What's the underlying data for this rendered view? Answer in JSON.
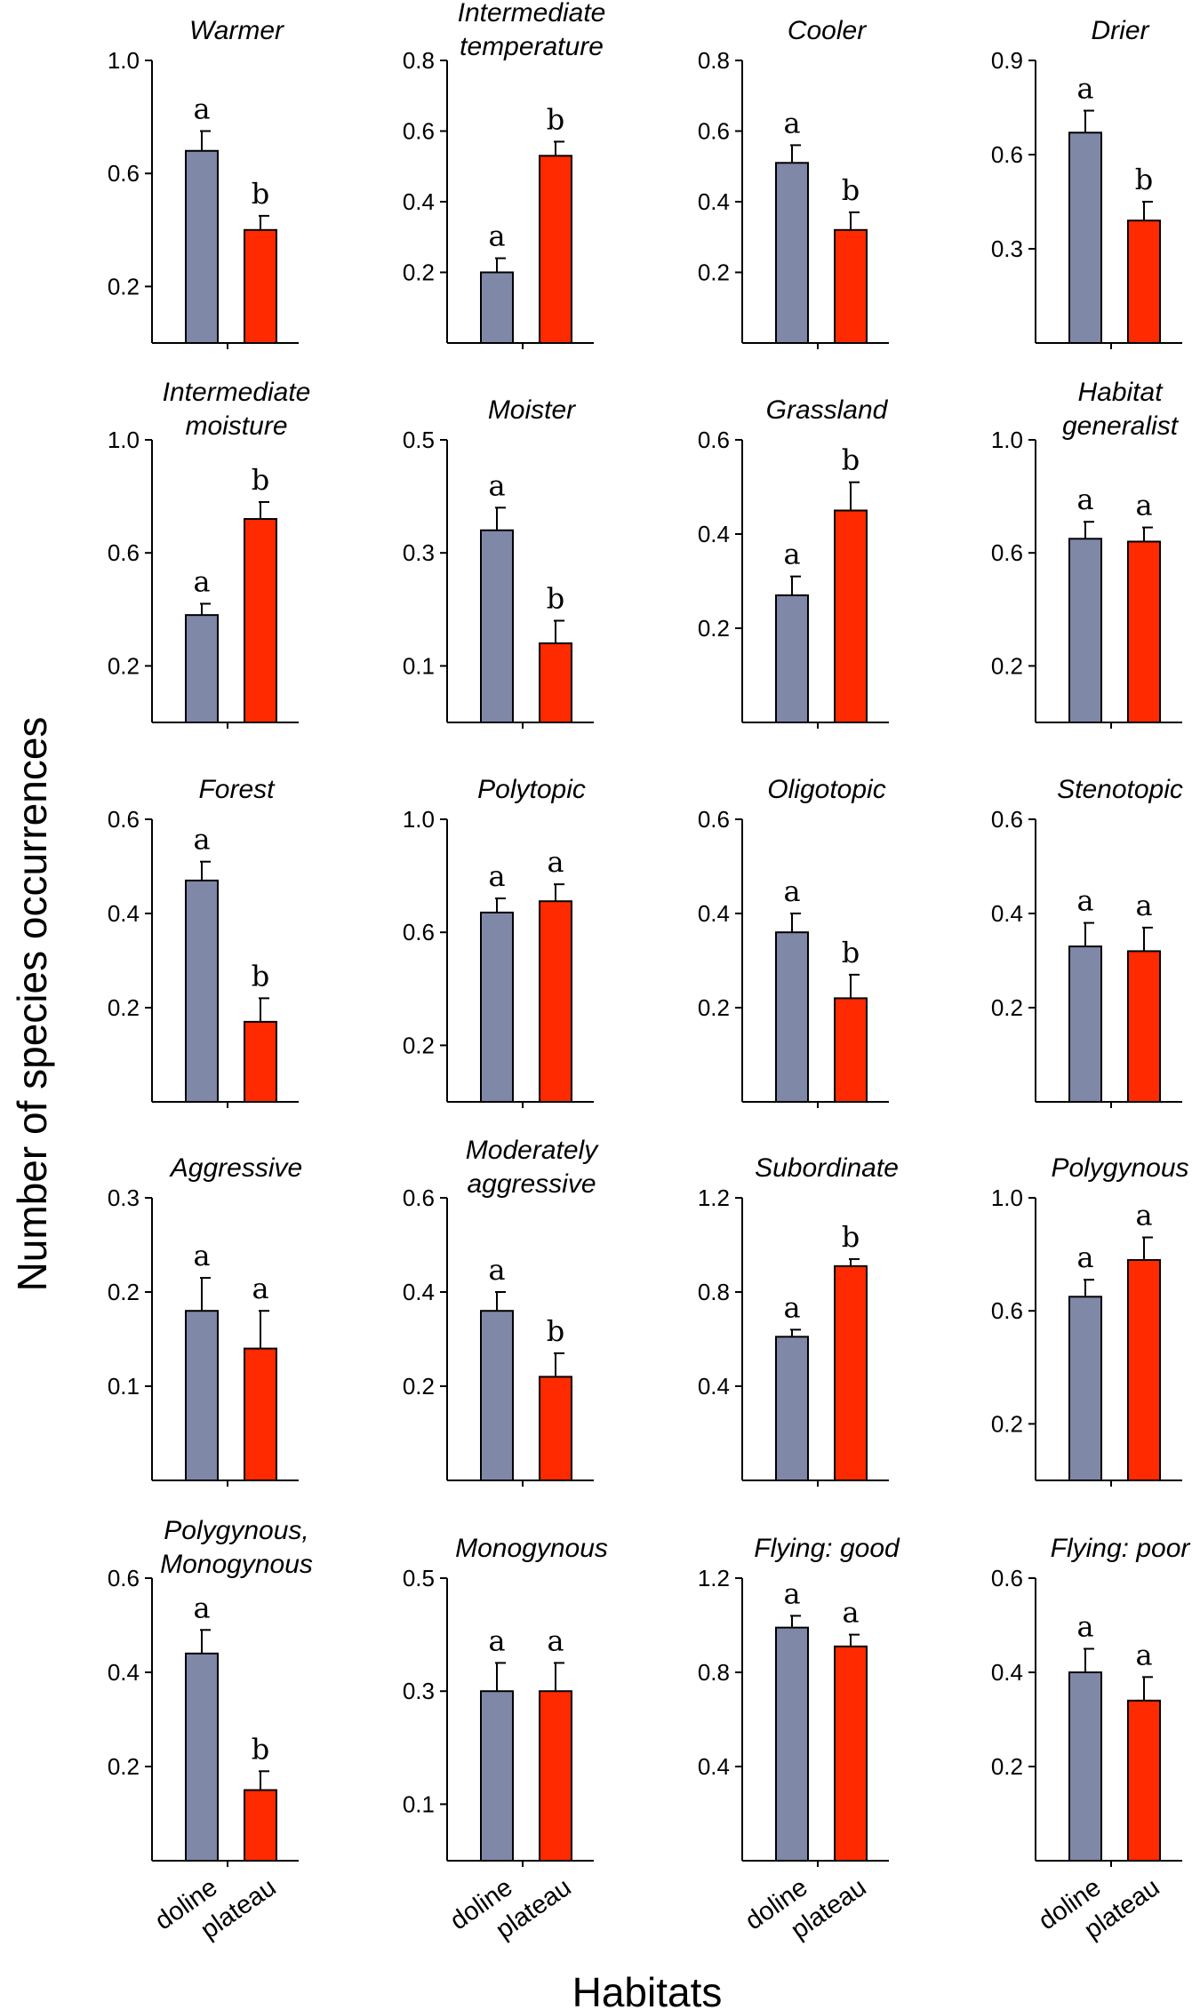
{
  "colors": {
    "doline": "#8088a8",
    "plateau": "#ff2a00"
  },
  "ylabel": "Number of species occurrences",
  "xlabel": "Habitats",
  "categories": [
    "doline",
    "plateau"
  ],
  "chart_data": [
    {
      "type": "bar",
      "title": [
        "Warmer"
      ],
      "categories": [
        "doline",
        "plateau"
      ],
      "values": [
        0.68,
        0.4
      ],
      "errors": [
        0.07,
        0.05
      ],
      "letters": [
        "a",
        "b"
      ],
      "ylim": [
        0,
        1.0
      ],
      "yticks": [
        0.2,
        0.6,
        1.0
      ],
      "ytick_labels": [
        "0.2",
        "0.6",
        "1.0"
      ]
    },
    {
      "type": "bar",
      "title": [
        "Intermediate",
        "temperature"
      ],
      "categories": [
        "doline",
        "plateau"
      ],
      "values": [
        0.2,
        0.53
      ],
      "errors": [
        0.04,
        0.04
      ],
      "letters": [
        "a",
        "b"
      ],
      "ylim": [
        0,
        0.8
      ],
      "yticks": [
        0.2,
        0.4,
        0.6,
        0.8
      ],
      "ytick_labels": [
        "0.2",
        "0.4",
        "0.6",
        "0.8"
      ]
    },
    {
      "type": "bar",
      "title": [
        "Cooler"
      ],
      "categories": [
        "doline",
        "plateau"
      ],
      "values": [
        0.51,
        0.32
      ],
      "errors": [
        0.05,
        0.05
      ],
      "letters": [
        "a",
        "b"
      ],
      "ylim": [
        0,
        0.8
      ],
      "yticks": [
        0.2,
        0.4,
        0.6,
        0.8
      ],
      "ytick_labels": [
        "0.2",
        "0.4",
        "0.6",
        "0.8"
      ]
    },
    {
      "type": "bar",
      "title": [
        "Drier"
      ],
      "categories": [
        "doline",
        "plateau"
      ],
      "values": [
        0.67,
        0.39
      ],
      "errors": [
        0.07,
        0.06
      ],
      "letters": [
        "a",
        "b"
      ],
      "ylim": [
        0,
        0.9
      ],
      "yticks": [
        0.3,
        0.6,
        0.9
      ],
      "ytick_labels": [
        "0.3",
        "0.6",
        "0.9"
      ]
    },
    {
      "type": "bar",
      "title": [
        "Intermediate",
        "moisture"
      ],
      "categories": [
        "doline",
        "plateau"
      ],
      "values": [
        0.38,
        0.72
      ],
      "errors": [
        0.04,
        0.06
      ],
      "letters": [
        "a",
        "b"
      ],
      "ylim": [
        0,
        1.0
      ],
      "yticks": [
        0.2,
        0.6,
        1.0
      ],
      "ytick_labels": [
        "0.2",
        "0.6",
        "1.0"
      ]
    },
    {
      "type": "bar",
      "title": [
        "Moister"
      ],
      "categories": [
        "doline",
        "plateau"
      ],
      "values": [
        0.34,
        0.14
      ],
      "errors": [
        0.04,
        0.04
      ],
      "letters": [
        "a",
        "b"
      ],
      "ylim": [
        0,
        0.5
      ],
      "yticks": [
        0.1,
        0.3,
        0.5
      ],
      "ytick_labels": [
        "0.1",
        "0.3",
        "0.5"
      ]
    },
    {
      "type": "bar",
      "title": [
        "Grassland"
      ],
      "categories": [
        "doline",
        "plateau"
      ],
      "values": [
        0.27,
        0.45
      ],
      "errors": [
        0.04,
        0.06
      ],
      "letters": [
        "a",
        "b"
      ],
      "ylim": [
        0,
        0.6
      ],
      "yticks": [
        0.2,
        0.4,
        0.6
      ],
      "ytick_labels": [
        "0.2",
        "0.4",
        "0.6"
      ]
    },
    {
      "type": "bar",
      "title": [
        "Habitat",
        "generalist"
      ],
      "categories": [
        "doline",
        "plateau"
      ],
      "values": [
        0.65,
        0.64
      ],
      "errors": [
        0.06,
        0.05
      ],
      "letters": [
        "a",
        "a"
      ],
      "ylim": [
        0,
        1.0
      ],
      "yticks": [
        0.2,
        0.6,
        1.0
      ],
      "ytick_labels": [
        "0.2",
        "0.6",
        "1.0"
      ]
    },
    {
      "type": "bar",
      "title": [
        "Forest"
      ],
      "categories": [
        "doline",
        "plateau"
      ],
      "values": [
        0.47,
        0.17
      ],
      "errors": [
        0.04,
        0.05
      ],
      "letters": [
        "a",
        "b"
      ],
      "ylim": [
        0,
        0.6
      ],
      "yticks": [
        0.2,
        0.4,
        0.6
      ],
      "ytick_labels": [
        "0.2",
        "0.4",
        "0.6"
      ]
    },
    {
      "type": "bar",
      "title": [
        "Polytopic"
      ],
      "categories": [
        "doline",
        "plateau"
      ],
      "values": [
        0.67,
        0.71
      ],
      "errors": [
        0.05,
        0.06
      ],
      "letters": [
        "a",
        "a"
      ],
      "ylim": [
        0,
        1.0
      ],
      "yticks": [
        0.2,
        0.6,
        1.0
      ],
      "ytick_labels": [
        "0.2",
        "0.6",
        "1.0"
      ]
    },
    {
      "type": "bar",
      "title": [
        "Oligotopic"
      ],
      "categories": [
        "doline",
        "plateau"
      ],
      "values": [
        0.36,
        0.22
      ],
      "errors": [
        0.04,
        0.05
      ],
      "letters": [
        "a",
        "b"
      ],
      "ylim": [
        0,
        0.6
      ],
      "yticks": [
        0.2,
        0.4,
        0.6
      ],
      "ytick_labels": [
        "0.2",
        "0.4",
        "0.6"
      ]
    },
    {
      "type": "bar",
      "title": [
        "Stenotopic"
      ],
      "categories": [
        "doline",
        "plateau"
      ],
      "values": [
        0.33,
        0.32
      ],
      "errors": [
        0.05,
        0.05
      ],
      "letters": [
        "a",
        "a"
      ],
      "ylim": [
        0,
        0.6
      ],
      "yticks": [
        0.2,
        0.4,
        0.6
      ],
      "ytick_labels": [
        "0.2",
        "0.4",
        "0.6"
      ]
    },
    {
      "type": "bar",
      "title": [
        "Aggressive"
      ],
      "categories": [
        "doline",
        "plateau"
      ],
      "values": [
        0.18,
        0.14
      ],
      "errors": [
        0.035,
        0.04
      ],
      "letters": [
        "a",
        "a"
      ],
      "ylim": [
        0,
        0.3
      ],
      "yticks": [
        0.1,
        0.2,
        0.3
      ],
      "ytick_labels": [
        "0.1",
        "0.2",
        "0.3"
      ]
    },
    {
      "type": "bar",
      "title": [
        "Moderately",
        "aggressive"
      ],
      "categories": [
        "doline",
        "plateau"
      ],
      "values": [
        0.36,
        0.22
      ],
      "errors": [
        0.04,
        0.05
      ],
      "letters": [
        "a",
        "b"
      ],
      "ylim": [
        0,
        0.6
      ],
      "yticks": [
        0.2,
        0.4,
        0.6
      ],
      "ytick_labels": [
        "0.2",
        "0.4",
        "0.6"
      ]
    },
    {
      "type": "bar",
      "title": [
        "Subordinate"
      ],
      "categories": [
        "doline",
        "plateau"
      ],
      "values": [
        0.61,
        0.91
      ],
      "errors": [
        0.03,
        0.03
      ],
      "letters": [
        "a",
        "b"
      ],
      "ylim": [
        0,
        1.2
      ],
      "yticks": [
        0.4,
        0.8,
        1.2
      ],
      "ytick_labels": [
        "0.4",
        "0.8",
        "1.2"
      ]
    },
    {
      "type": "bar",
      "title": [
        "Polygynous"
      ],
      "categories": [
        "doline",
        "plateau"
      ],
      "values": [
        0.65,
        0.78
      ],
      "errors": [
        0.06,
        0.08
      ],
      "letters": [
        "a",
        "a"
      ],
      "ylim": [
        0,
        1.0
      ],
      "yticks": [
        0.2,
        0.6,
        1.0
      ],
      "ytick_labels": [
        "0.2",
        "0.6",
        "1.0"
      ]
    },
    {
      "type": "bar",
      "title": [
        "Polygynous,",
        "Monogynous"
      ],
      "categories": [
        "doline",
        "plateau"
      ],
      "values": [
        0.44,
        0.15
      ],
      "errors": [
        0.05,
        0.04
      ],
      "letters": [
        "a",
        "b"
      ],
      "ylim": [
        0,
        0.6
      ],
      "yticks": [
        0.2,
        0.4,
        0.6
      ],
      "ytick_labels": [
        "0.2",
        "0.4",
        "0.6"
      ]
    },
    {
      "type": "bar",
      "title": [
        "Monogynous"
      ],
      "categories": [
        "doline",
        "plateau"
      ],
      "values": [
        0.3,
        0.3
      ],
      "errors": [
        0.05,
        0.05
      ],
      "letters": [
        "a",
        "a"
      ],
      "ylim": [
        0,
        0.5
      ],
      "yticks": [
        0.1,
        0.3,
        0.5
      ],
      "ytick_labels": [
        "0.1",
        "0.3",
        "0.5"
      ]
    },
    {
      "type": "bar",
      "title": [
        "Flying: good"
      ],
      "categories": [
        "doline",
        "plateau"
      ],
      "values": [
        0.99,
        0.91
      ],
      "errors": [
        0.05,
        0.05
      ],
      "letters": [
        "a",
        "a"
      ],
      "ylim": [
        0,
        1.2
      ],
      "yticks": [
        0.4,
        0.8,
        1.2
      ],
      "ytick_labels": [
        "0.4",
        "0.8",
        "1.2"
      ]
    },
    {
      "type": "bar",
      "title": [
        "Flying: poor"
      ],
      "categories": [
        "doline",
        "plateau"
      ],
      "values": [
        0.4,
        0.34
      ],
      "errors": [
        0.05,
        0.05
      ],
      "letters": [
        "a",
        "a"
      ],
      "ylim": [
        0,
        0.6
      ],
      "yticks": [
        0.2,
        0.4,
        0.6
      ],
      "ytick_labels": [
        "0.2",
        "0.4",
        "0.6"
      ]
    }
  ]
}
